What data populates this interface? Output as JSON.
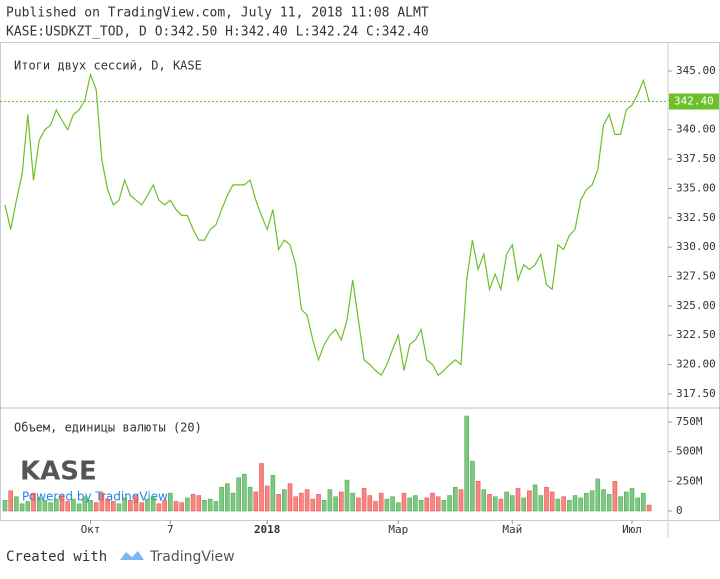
{
  "header": {
    "line1": "Published on TradingView.com, July 11, 2018 11:08 ALMT",
    "line2": "KASE:USDKZT_TOD, D O:342.50 H:342.40 L:342.24 C:342.40"
  },
  "branding": {
    "logo": "KASE",
    "powered": "Powered by TradingView",
    "created": "Created with",
    "brand": "TradingView"
  },
  "chart_data": [
    {
      "type": "line",
      "title": "Итоги двух сессий, D, KASE",
      "color": "#6cc02a",
      "values": [
        333.6,
        331.5,
        334,
        336.2,
        341.3,
        335.7,
        339.1,
        340,
        340.4,
        341.7,
        340.8,
        340,
        341.3,
        341.7,
        342.5,
        344.7,
        343.4,
        337.4,
        334.9,
        333.6,
        334,
        335.7,
        334.4,
        334,
        333.6,
        334.4,
        335.3,
        334,
        333.6,
        334,
        333.2,
        332.7,
        332.7,
        331.5,
        330.6,
        330.6,
        331.5,
        331.9,
        333.2,
        334.4,
        335.3,
        335.3,
        335.3,
        335.7,
        334,
        332.7,
        331.5,
        333.2,
        329.8,
        330.6,
        330.2,
        328.5,
        324.7,
        324.2,
        322.1,
        320.4,
        321.7,
        322.5,
        323,
        322.1,
        323.8,
        327.2,
        323.8,
        320.4,
        320,
        319.5,
        319.1,
        320,
        321.3,
        322.5,
        319.5,
        321.7,
        322.1,
        323,
        320.4,
        320,
        319.1,
        319.5,
        320,
        320.4,
        320,
        327.2,
        330.6,
        328.1,
        329.4,
        326.4,
        327.7,
        326.4,
        329.4,
        330.2,
        327.2,
        328.5,
        328.1,
        328.5,
        329.4,
        326.8,
        326.4,
        330.2,
        329.8,
        331,
        331.5,
        334,
        334.9,
        335.3,
        336.6,
        340.4,
        341.3,
        339.6,
        339.6,
        341.7,
        342.1,
        343,
        344.2,
        342.4
      ],
      "last_price": {
        "value": 342.4,
        "label": "342.40"
      },
      "ylim": [
        316.56,
        347.47
      ],
      "yticks": [
        {
          "value": 317.5,
          "label": "317.50"
        },
        {
          "value": 320,
          "label": "320.00"
        },
        {
          "value": 322.5,
          "label": "322.50"
        },
        {
          "value": 325,
          "label": "325.00"
        },
        {
          "value": 327.5,
          "label": "327.50"
        },
        {
          "value": 330,
          "label": "330.00"
        },
        {
          "value": 332.5,
          "label": "332.50"
        },
        {
          "value": 335,
          "label": "335.00"
        },
        {
          "value": 337.5,
          "label": "337.50"
        },
        {
          "value": 340,
          "label": "340.00"
        },
        {
          "value": 342.5,
          "label": "342.50"
        },
        {
          "value": 345,
          "label": "345.00"
        }
      ]
    },
    {
      "type": "bar",
      "title": "Объем, единицы валюты (20)",
      "color": "#4caf50",
      "down_color": "#ef5350",
      "categories": [
        null,
        null,
        null,
        null,
        null,
        null,
        null,
        null,
        null,
        null,
        null,
        null,
        null,
        null,
        null,
        "Окт",
        null,
        null,
        null,
        null,
        null,
        null,
        null,
        null,
        null,
        null,
        null,
        null,
        null,
        "7",
        null,
        null,
        null,
        null,
        null,
        null,
        null,
        null,
        null,
        null,
        null,
        null,
        null,
        null,
        null,
        null,
        "2018",
        null,
        null,
        null,
        null,
        null,
        null,
        null,
        null,
        null,
        null,
        null,
        null,
        null,
        null,
        null,
        null,
        null,
        null,
        null,
        null,
        null,
        null,
        "Мар",
        null,
        null,
        null,
        null,
        null,
        null,
        null,
        null,
        null,
        null,
        null,
        null,
        null,
        null,
        null,
        null,
        null,
        null,
        null,
        "Май",
        null,
        null,
        null,
        null,
        null,
        null,
        null,
        null,
        null,
        null,
        null,
        null,
        null,
        null,
        null,
        null,
        null,
        null,
        null,
        null,
        "Июл",
        null,
        null,
        null
      ],
      "values": [
        90,
        170,
        120,
        60,
        80,
        150,
        110,
        90,
        70,
        100,
        130,
        80,
        100,
        60,
        120,
        90,
        70,
        150,
        100,
        80,
        60,
        110,
        90,
        130,
        70,
        100,
        120,
        60,
        90,
        150,
        80,
        70,
        110,
        140,
        130,
        90,
        100,
        80,
        200,
        230,
        150,
        280,
        310,
        200,
        160,
        400,
        210,
        300,
        140,
        180,
        230,
        120,
        150,
        180,
        100,
        140,
        90,
        180,
        120,
        160,
        260,
        150,
        110,
        190,
        130,
        80,
        150,
        100,
        120,
        70,
        150,
        110,
        130,
        90,
        110,
        150,
        120,
        90,
        130,
        200,
        180,
        800,
        420,
        250,
        180,
        140,
        120,
        100,
        160,
        130,
        190,
        110,
        170,
        220,
        130,
        200,
        160,
        100,
        120,
        90,
        130,
        110,
        150,
        170,
        270,
        180,
        140,
        250,
        120,
        160,
        190,
        110,
        150,
        50
      ],
      "ylim": [
        -76,
        851
      ],
      "yticks": [
        0,
        {
          "value": 250,
          "label": "250M"
        },
        {
          "value": 500,
          "label": "500M"
        },
        {
          "value": 750,
          "label": "750M"
        }
      ]
    }
  ]
}
